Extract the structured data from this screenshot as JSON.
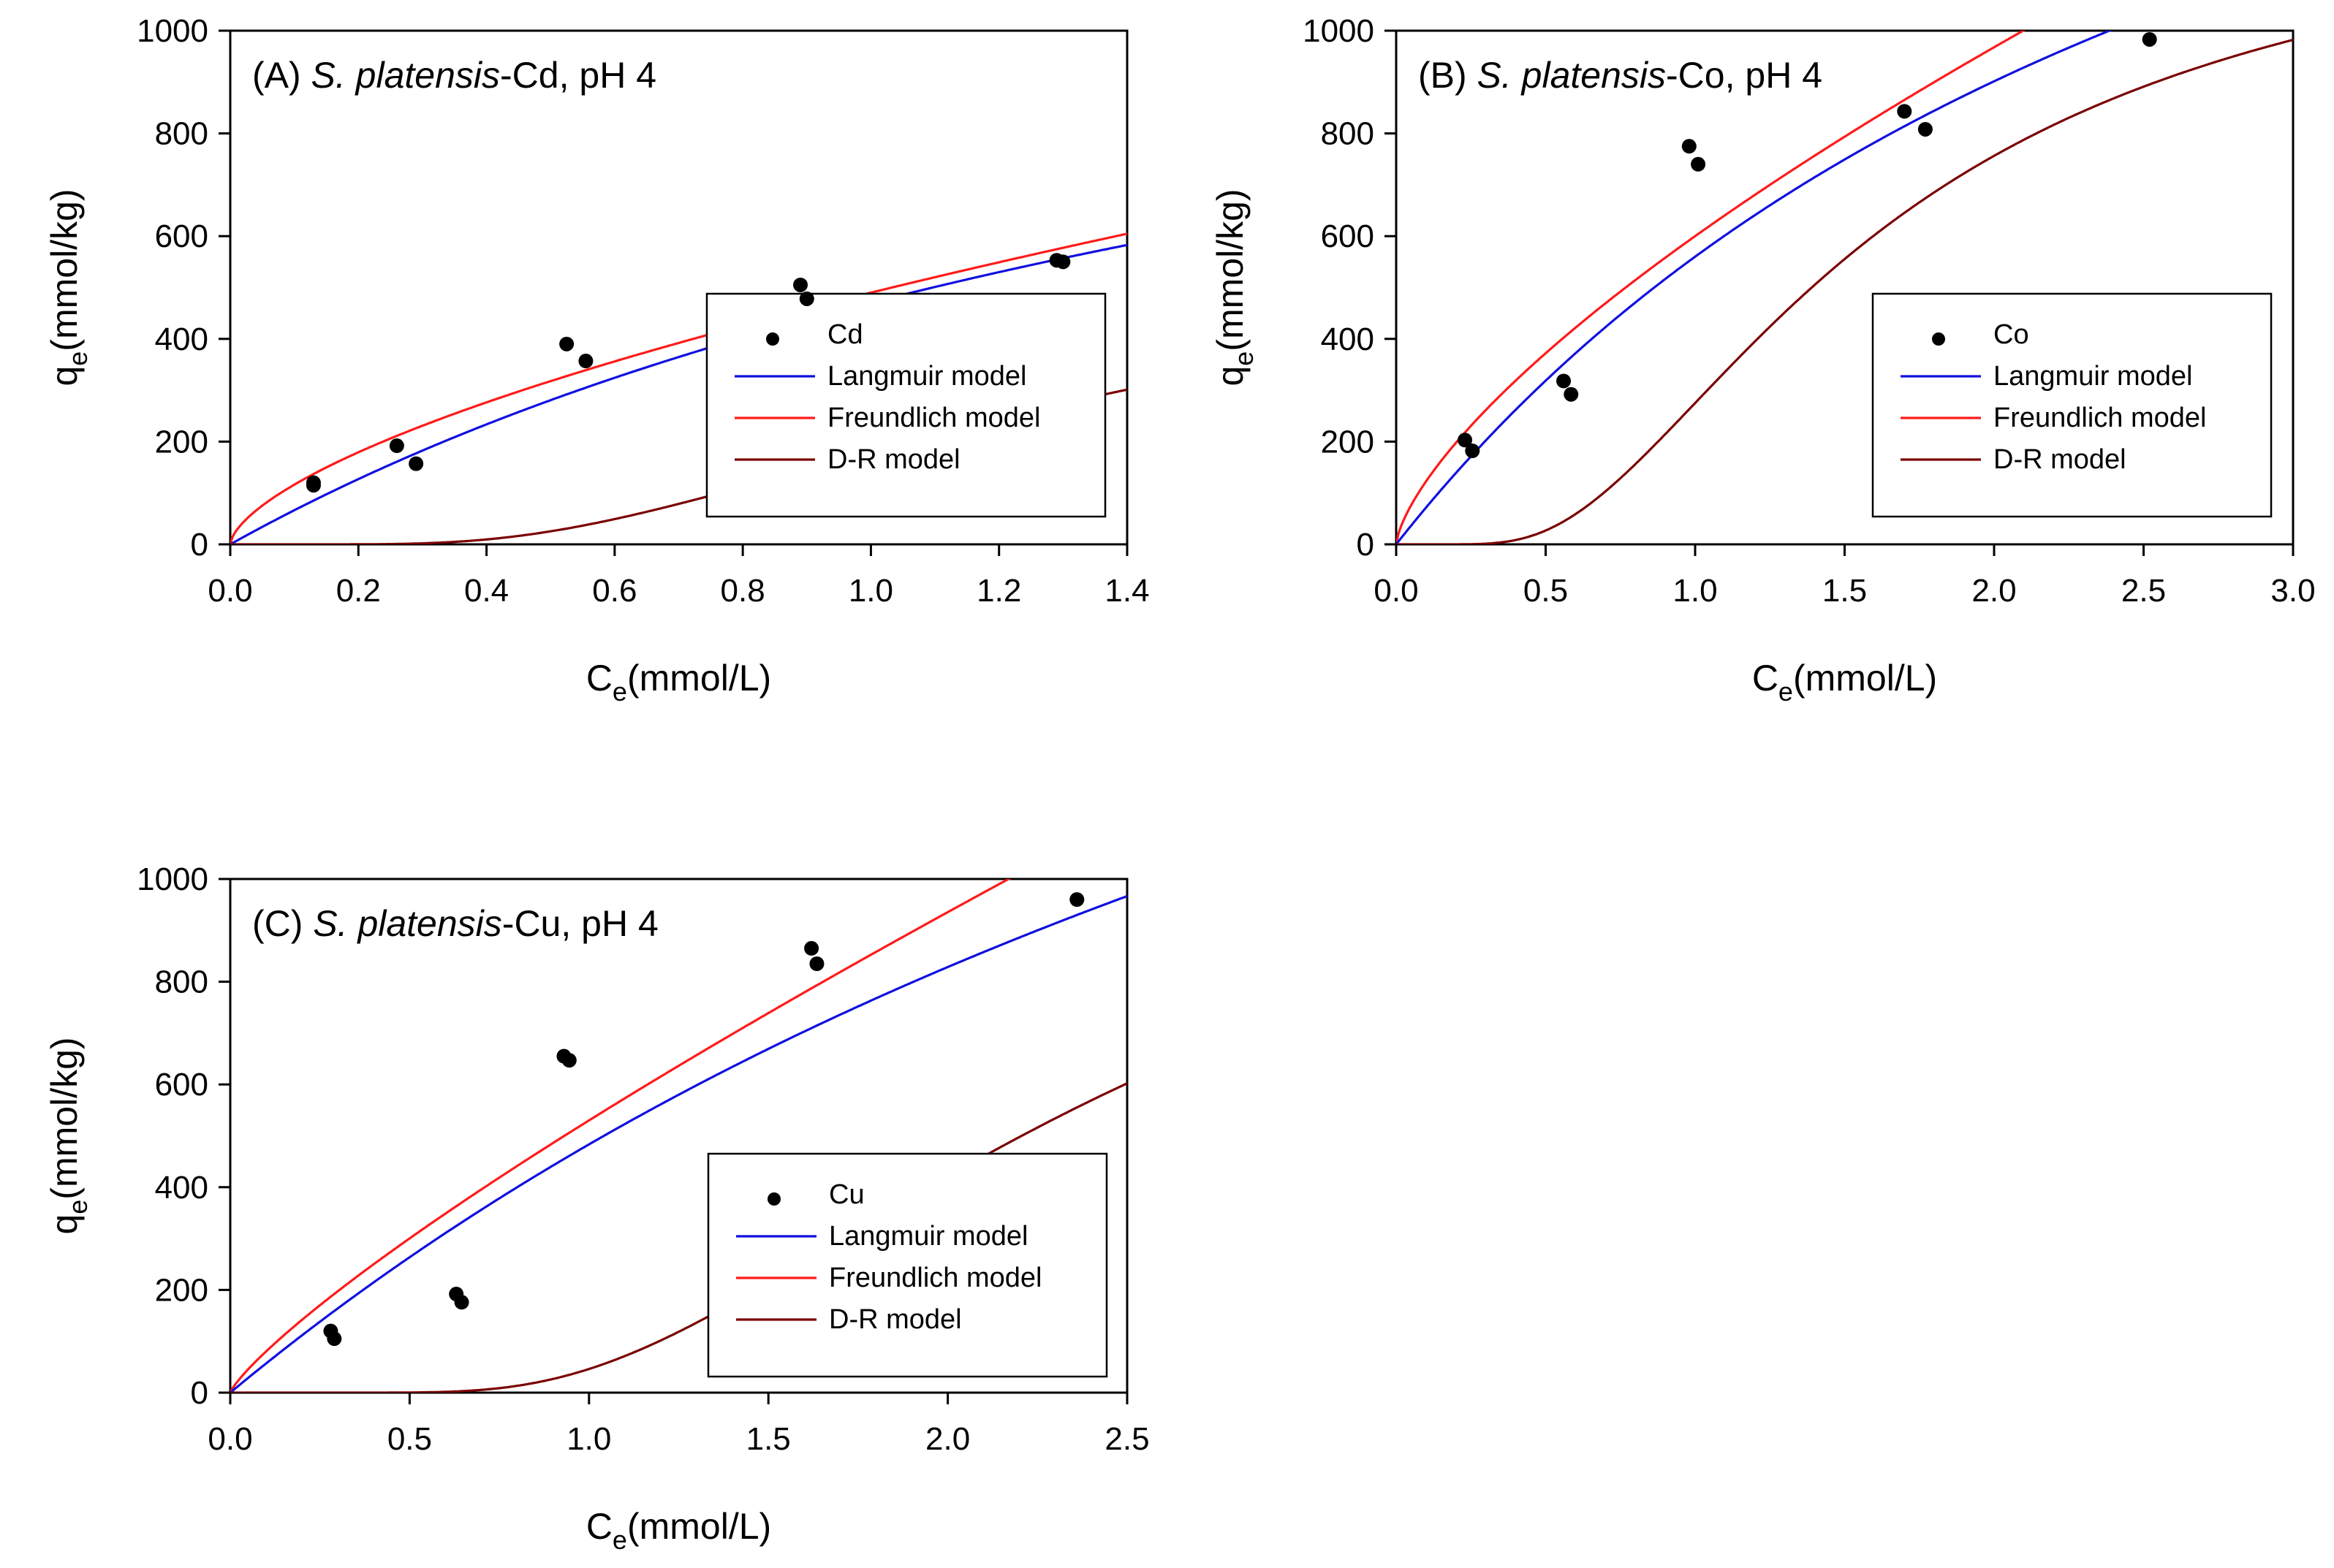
{
  "colors": {
    "data": "#000000",
    "langmuir": "#1010e0",
    "freundlich": "#ff1a1a",
    "dr": "#7a0000"
  },
  "chart_data": [
    {
      "type": "scatter",
      "panel_label": "(A) ",
      "title_italic": "S. platensis",
      "title_rest": "-Cd, pH 4",
      "xlabel_main": "C",
      "xlabel_sub": "e",
      "xlabel_unit": "(mmol/L)",
      "ylabel_main": "q",
      "ylabel_sub": "e",
      "ylabel_unit": "(mmol/kg)",
      "xlim": [
        0,
        1.4
      ],
      "ylim": [
        0,
        1000
      ],
      "xticks": [
        0,
        0.2,
        0.4,
        0.6,
        0.8,
        1.0,
        1.2,
        1.4
      ],
      "xtick_labels": [
        "0.0",
        "0.2",
        "0.4",
        "0.6",
        "0.8",
        "1.0",
        "1.2",
        "1.4"
      ],
      "yticks": [
        0,
        200,
        400,
        600,
        800,
        1000
      ],
      "ytick_labels": [
        "0",
        "200",
        "400",
        "600",
        "800",
        "1000"
      ],
      "legend_position": "center-right",
      "legend": [
        "Cd",
        "Langmuir model",
        "Freundlich model",
        "D-R model"
      ],
      "points": [
        {
          "x": 0.13,
          "y": 120
        },
        {
          "x": 0.13,
          "y": 115
        },
        {
          "x": 0.26,
          "y": 192
        },
        {
          "x": 0.29,
          "y": 157
        },
        {
          "x": 0.525,
          "y": 390
        },
        {
          "x": 0.555,
          "y": 357
        },
        {
          "x": 0.89,
          "y": 505
        },
        {
          "x": 0.9,
          "y": 478
        },
        {
          "x": 1.29,
          "y": 553
        },
        {
          "x": 1.3,
          "y": 550
        }
      ],
      "models": {
        "langmuir": {
          "qmax": 1450,
          "b": 0.48
        },
        "freundlich": {
          "kf": 490,
          "n": 1.6
        },
        "dr": {
          "qm": 660,
          "beta": 0.027
        }
      }
    },
    {
      "type": "scatter",
      "panel_label": "(B) ",
      "title_italic": "S. platensis",
      "title_rest": "-Co, pH 4",
      "xlabel_main": "C",
      "xlabel_sub": "e",
      "xlabel_unit": "(mmol/L)",
      "ylabel_main": "q",
      "ylabel_sub": "e",
      "ylabel_unit": "(mmol/kg)",
      "xlim": [
        0,
        3.0
      ],
      "ylim": [
        0,
        1000
      ],
      "xticks": [
        0,
        0.5,
        1.0,
        1.5,
        2.0,
        2.5,
        3.0
      ],
      "xtick_labels": [
        "0.0",
        "0.5",
        "1.0",
        "1.5",
        "2.0",
        "2.5",
        "3.0"
      ],
      "yticks": [
        0,
        200,
        400,
        600,
        800,
        1000
      ],
      "ytick_labels": [
        "0",
        "200",
        "400",
        "600",
        "800",
        "1000"
      ],
      "legend_position": "center-right",
      "legend": [
        "Co",
        "Langmuir model",
        "Freundlich model",
        "D-R model"
      ],
      "points": [
        {
          "x": 0.23,
          "y": 203
        },
        {
          "x": 0.255,
          "y": 182
        },
        {
          "x": 0.56,
          "y": 318
        },
        {
          "x": 0.585,
          "y": 292
        },
        {
          "x": 0.98,
          "y": 775
        },
        {
          "x": 1.01,
          "y": 740
        },
        {
          "x": 1.7,
          "y": 843
        },
        {
          "x": 1.77,
          "y": 808
        },
        {
          "x": 2.52,
          "y": 983
        }
      ],
      "models": {
        "langmuir": {
          "qmax": 2310,
          "b": 0.32
        },
        "freundlich": {
          "kf": 600,
          "n": 1.45
        },
        "dr": {
          "qm": 1280,
          "beta": 0.032
        }
      }
    },
    {
      "type": "scatter",
      "panel_label": "(C) ",
      "title_italic": "S. platensis",
      "title_rest": "-Cu, pH 4",
      "xlabel_main": "C",
      "xlabel_sub": "e",
      "xlabel_unit": "(mmol/L)",
      "ylabel_main": "q",
      "ylabel_sub": "e",
      "ylabel_unit": "(mmol/kg)",
      "xlim": [
        0,
        2.5
      ],
      "ylim": [
        0,
        1000
      ],
      "xticks": [
        0,
        0.5,
        1.0,
        1.5,
        2.0,
        2.5
      ],
      "xtick_labels": [
        "0.0",
        "0.5",
        "1.0",
        "1.5",
        "2.0",
        "2.5"
      ],
      "yticks": [
        0,
        200,
        400,
        600,
        800,
        1000
      ],
      "ytick_labels": [
        "0",
        "200",
        "400",
        "600",
        "800",
        "1000"
      ],
      "legend_position": "bottom-right",
      "legend": [
        "Cu",
        "Langmuir model",
        "Freundlich model",
        "D-R model"
      ],
      "points": [
        {
          "x": 0.28,
          "y": 120
        },
        {
          "x": 0.29,
          "y": 105
        },
        {
          "x": 0.63,
          "y": 192
        },
        {
          "x": 0.645,
          "y": 176
        },
        {
          "x": 0.93,
          "y": 655
        },
        {
          "x": 0.945,
          "y": 647
        },
        {
          "x": 1.62,
          "y": 865
        },
        {
          "x": 1.635,
          "y": 835
        },
        {
          "x": 2.36,
          "y": 960
        }
      ],
      "models": {
        "langmuir": {
          "qmax": 2900,
          "b": 0.2
        },
        "freundlich": {
          "kf": 530,
          "n": 1.22
        },
        "dr": {
          "qm": 1330,
          "beta": 0.07
        }
      }
    }
  ]
}
